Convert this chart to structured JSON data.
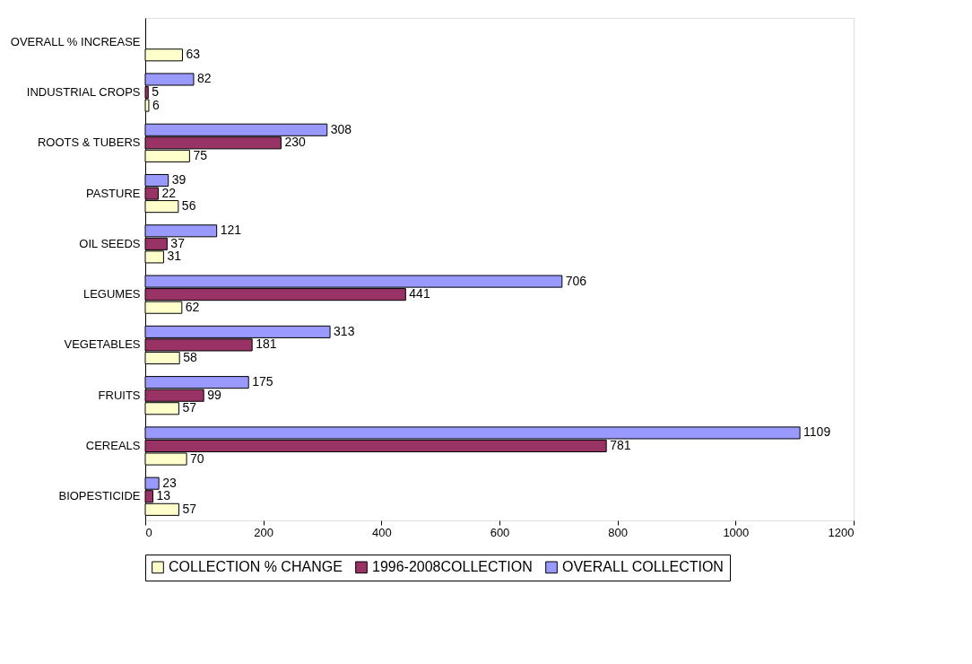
{
  "chart_data": {
    "type": "bar",
    "orientation": "horizontal",
    "categories": [
      "OVERALL % INCREASE",
      "INDUSTRIAL CROPS",
      "ROOTS & TUBERS",
      "PASTURE",
      "OIL SEEDS",
      "LEGUMES",
      "VEGETABLES",
      "FRUITS",
      "CEREALS",
      "BIOPESTICIDE"
    ],
    "series": [
      {
        "name": "COLLECTION % CHANGE",
        "color": "#ffffcc",
        "values": [
          63,
          6,
          75,
          56,
          31,
          62,
          58,
          57,
          70,
          57
        ]
      },
      {
        "name": "1996-2008COLLECTION",
        "color": "#993366",
        "values": [
          null,
          5,
          230,
          22,
          37,
          441,
          181,
          99,
          781,
          13
        ]
      },
      {
        "name": "OVERALL COLLECTION",
        "color": "#9999ff",
        "values": [
          null,
          82,
          308,
          39,
          121,
          706,
          313,
          175,
          1109,
          23
        ]
      }
    ],
    "xlim": [
      0,
      1200
    ],
    "xticks": [
      0,
      200,
      400,
      600,
      800,
      1000,
      1200
    ],
    "data_labels": true,
    "grid": false,
    "legend": "bottom"
  }
}
